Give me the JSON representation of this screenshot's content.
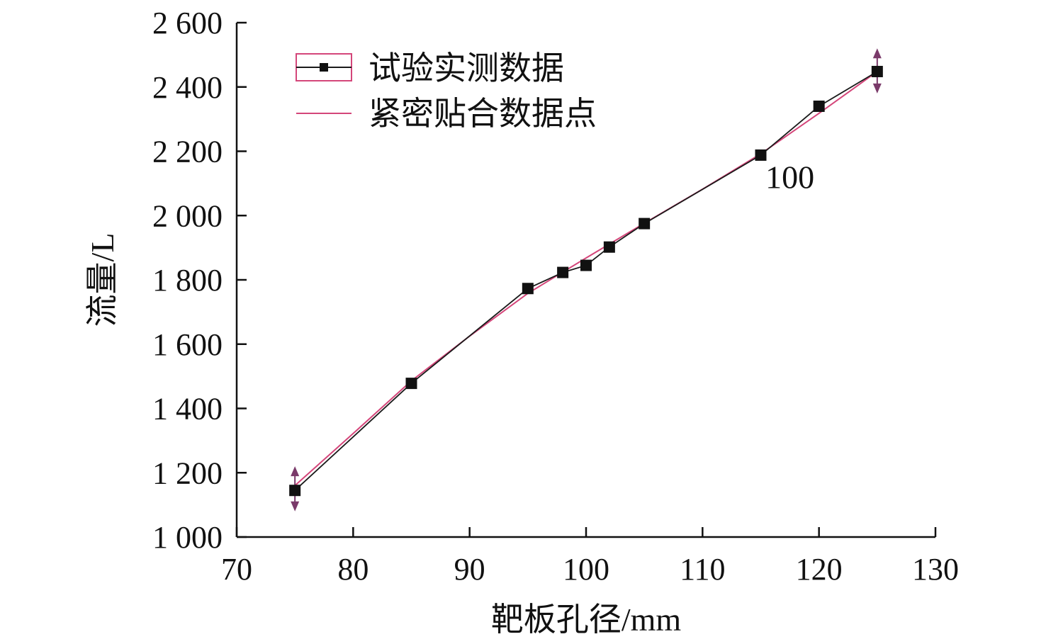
{
  "chart_data": {
    "type": "line",
    "xlabel": "靶板孔径/mm",
    "ylabel": "流量/L",
    "xlim": [
      70,
      130
    ],
    "ylim": [
      1000,
      2600
    ],
    "x_ticks": [
      70,
      80,
      90,
      100,
      110,
      120,
      130
    ],
    "x_tick_labels": [
      "70",
      "80",
      "90",
      "100",
      "110",
      "120",
      "130"
    ],
    "y_ticks": [
      1000,
      1200,
      1400,
      1600,
      1800,
      2000,
      2200,
      2400,
      2600
    ],
    "y_tick_labels": [
      "1 000",
      "1 200",
      "1 400",
      "1 600",
      "1 800",
      "2 000",
      "2 200",
      "2 400",
      "2 600"
    ],
    "grid": false,
    "legend_position": "top-left",
    "series": [
      {
        "name": "试验实测数据",
        "color": "#1a1a1a",
        "marker": "square",
        "x": [
          75,
          85,
          95,
          98,
          100,
          102,
          105,
          115,
          120,
          125
        ],
        "y": [
          1145,
          1478,
          1773,
          1823,
          1845,
          1902,
          1975,
          2188,
          2340,
          2448
        ]
      },
      {
        "name": "紧密贴合数据点",
        "color": "#d4467a",
        "marker": "none",
        "x": [
          75,
          80,
          85,
          90,
          95,
          100,
          105,
          110,
          115,
          120,
          125
        ],
        "y": [
          1160,
          1322,
          1486,
          1625,
          1758,
          1868,
          1976,
          2082,
          2192,
          2318,
          2448
        ]
      }
    ],
    "annotations": [
      {
        "text": "100",
        "x": 117.5,
        "y": 2090
      }
    ],
    "error_arrows": [
      {
        "x": 75,
        "y": 1145,
        "low": 1080,
        "high": 1220,
        "color": "#7a3a6a"
      },
      {
        "x": 125,
        "y": 2448,
        "low": 2380,
        "high": 2520,
        "color": "#7a3a6a"
      }
    ]
  }
}
